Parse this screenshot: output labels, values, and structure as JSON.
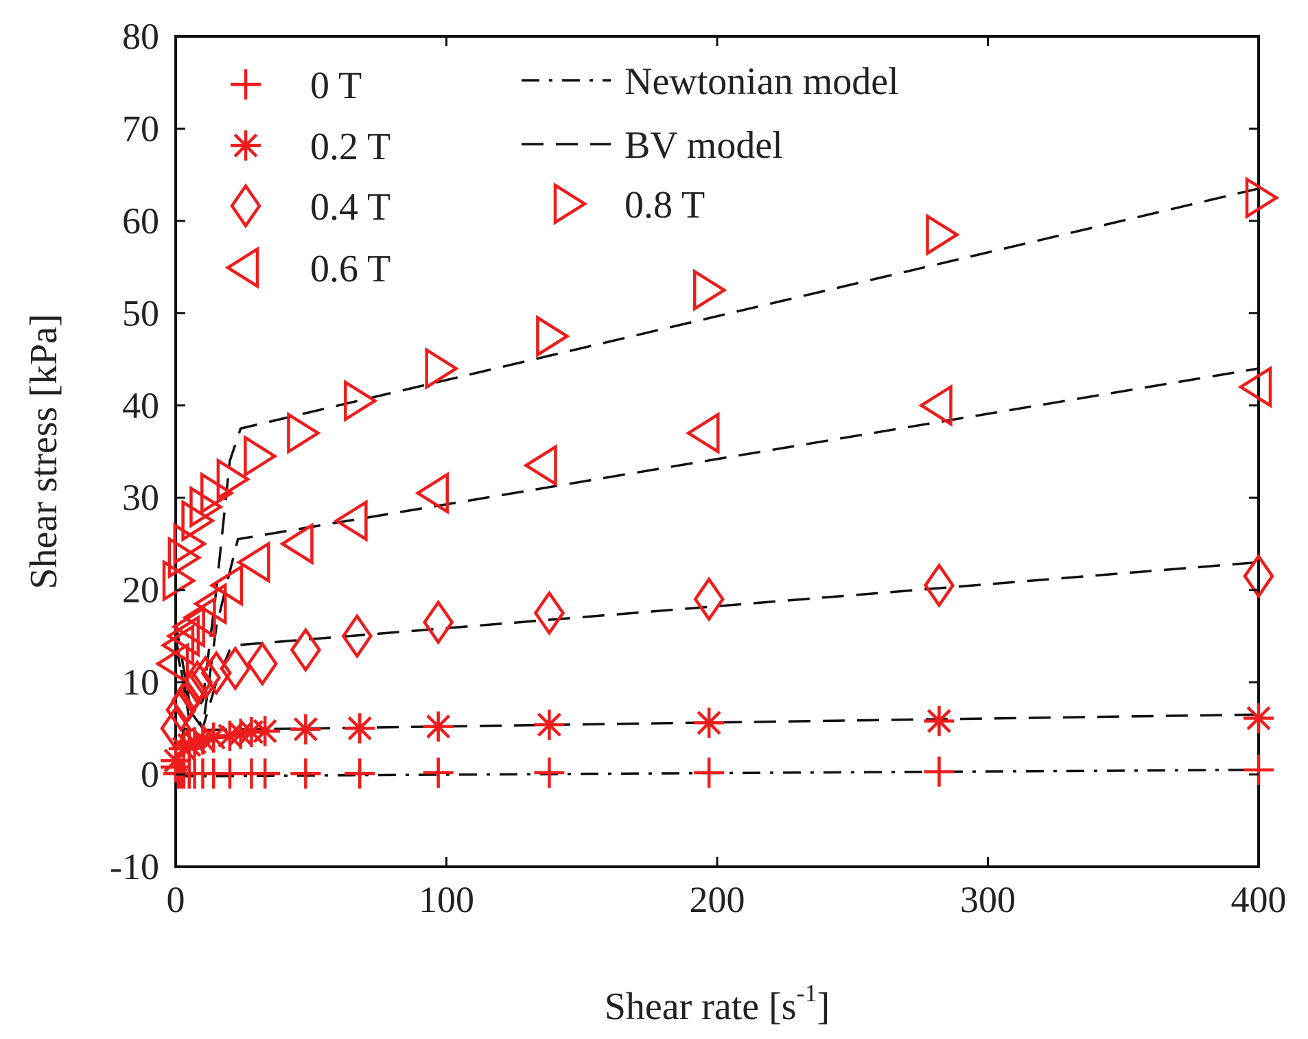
{
  "chart_data": {
    "type": "scatter",
    "title": "",
    "xlabel": "Shear rate [s",
    "xlabel_sup": "-1",
    "xlabel_suffix": "]",
    "ylabel": "Shear stress [kPa]",
    "xlim": [
      0,
      400
    ],
    "ylim": [
      -10,
      80
    ],
    "xticks": [
      0,
      100,
      200,
      300,
      400
    ],
    "xtick_labels": [
      "0",
      "100",
      "200",
      "300",
      "400"
    ],
    "yticks": [
      -10,
      0,
      10,
      20,
      30,
      40,
      50,
      60,
      70,
      80
    ],
    "ytick_labels": [
      "-10",
      "0",
      "10",
      "20",
      "30",
      "40",
      "50",
      "60",
      "70",
      "80"
    ],
    "grid": false,
    "marker_color": "#ee1c1c",
    "line_color": "#111111",
    "series": [
      {
        "name": "0 T",
        "marker": "plus",
        "x": [
          0,
          1,
          2,
          3,
          5,
          7,
          10,
          14,
          20,
          28,
          33,
          48,
          68,
          97,
          138,
          197,
          282,
          400
        ],
        "y": [
          0.8,
          0.1,
          0.1,
          0.1,
          0.1,
          0.1,
          0.1,
          0.1,
          0.1,
          0.1,
          0.1,
          0.1,
          0.1,
          0.2,
          0.2,
          0.2,
          0.3,
          0.5
        ]
      },
      {
        "name": "0.2 T",
        "marker": "star",
        "x": [
          0,
          3,
          5,
          7,
          10,
          14,
          20,
          24,
          28,
          33,
          48,
          68,
          97,
          138,
          197,
          282,
          400
        ],
        "y": [
          1.5,
          2.8,
          3.2,
          3.5,
          3.8,
          4.0,
          4.2,
          4.4,
          4.6,
          4.7,
          4.9,
          5.0,
          5.2,
          5.4,
          5.6,
          5.8,
          6.1
        ]
      },
      {
        "name": "0.4 T",
        "marker": "diamond",
        "x": [
          0,
          2,
          4,
          6,
          8,
          11,
          15,
          22,
          32,
          48,
          67,
          97,
          138,
          197,
          282,
          400
        ],
        "y": [
          5.0,
          7.0,
          8.0,
          9.0,
          10.0,
          10.5,
          11.0,
          11.5,
          12.0,
          13.5,
          15.0,
          16.5,
          17.5,
          19.0,
          20.5,
          21.5
        ]
      },
      {
        "name": "0.6 T",
        "marker": "triangle-left",
        "x": [
          0,
          2,
          4,
          6,
          10,
          14,
          20,
          30,
          46,
          66,
          96,
          136,
          196,
          282,
          400
        ],
        "y": [
          12.0,
          14.0,
          15.0,
          16.0,
          17.0,
          18.5,
          20.5,
          23.0,
          25.0,
          27.5,
          30.5,
          33.5,
          37.0,
          40.0,
          42.0
        ]
      },
      {
        "name": "0.8 T",
        "marker": "triangle-right",
        "x": [
          0,
          2,
          4,
          7,
          10,
          14,
          20,
          30,
          46,
          67,
          97,
          138,
          196,
          282,
          400
        ],
        "y": [
          21.0,
          23.5,
          25.0,
          27.5,
          29.0,
          30.5,
          32.0,
          34.5,
          37.0,
          40.5,
          44.0,
          47.5,
          52.5,
          58.5,
          62.5
        ]
      }
    ],
    "model_lines": [
      {
        "name": "Newtonian model",
        "style": "dash-dot",
        "x": [
          0,
          400
        ],
        "y": [
          -0.2,
          0.5
        ]
      },
      {
        "name": "BV model",
        "style": "dash",
        "yield_of": "0.2 T",
        "x": [
          0,
          3,
          5,
          400
        ],
        "y": [
          0,
          5,
          4.8,
          6.5
        ]
      },
      {
        "name": "BV model",
        "style": "dash",
        "yield_of": "0.4 T",
        "x": [
          0,
          5,
          10,
          15,
          20,
          22,
          400
        ],
        "y": [
          16.5,
          8,
          5,
          10,
          13.5,
          14,
          23
        ]
      },
      {
        "name": "BV model",
        "style": "dash",
        "yield_of": "0.6 T",
        "x": [
          0,
          5,
          10,
          15,
          20,
          23,
          400
        ],
        "y": [
          14,
          7,
          5,
          16,
          22,
          25.5,
          44
        ]
      },
      {
        "name": "BV model",
        "style": "dash",
        "yield_of": "0.8 T",
        "x": [
          0,
          5,
          10,
          15,
          20,
          24,
          400
        ],
        "y": [
          15,
          6,
          8,
          20,
          34,
          37.5,
          63.5
        ]
      }
    ],
    "legend": {
      "placement": "top",
      "left_column": [
        "0 T",
        "0.2 T",
        "0.4 T",
        "0.6 T"
      ],
      "right_column": [
        {
          "label": "Newtonian model",
          "kind": "line",
          "style": "dash-dot"
        },
        {
          "label": "BV model",
          "kind": "line",
          "style": "dash"
        },
        {
          "label": "0.8 T",
          "kind": "marker",
          "marker": "triangle-right"
        }
      ]
    }
  }
}
